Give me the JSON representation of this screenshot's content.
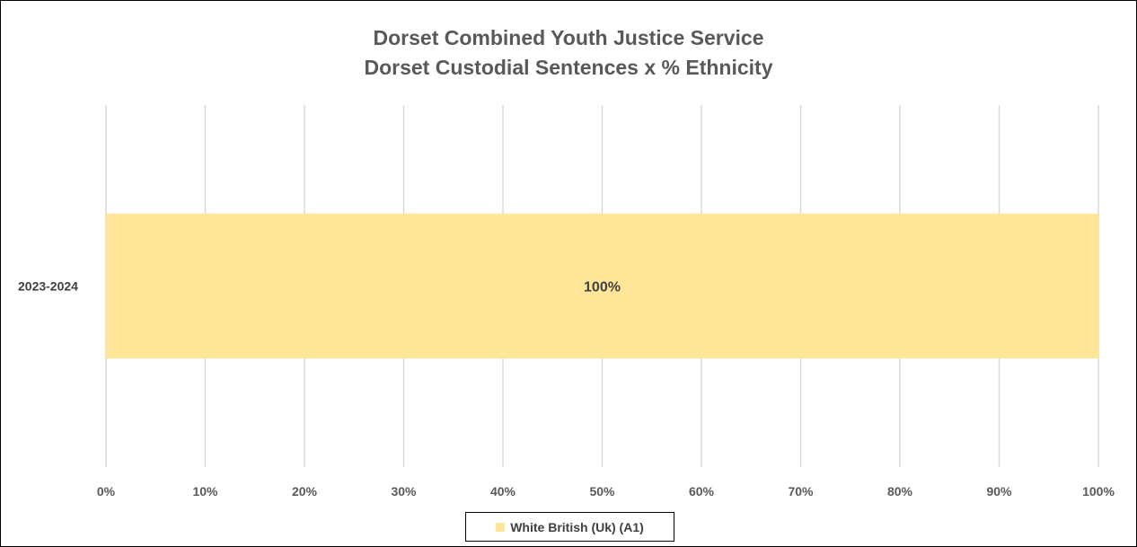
{
  "chart_data": {
    "type": "bar",
    "orientation": "horizontal",
    "stacked": true,
    "title": "Dorset Combined Youth Justice Service",
    "subtitle": "Dorset Custodial Sentences x % Ethnicity",
    "categories": [
      "2023-2024"
    ],
    "series": [
      {
        "name": "White British (Uk) (A1)",
        "values": [
          100
        ],
        "color": "#FFE699",
        "data_labels": [
          "100%"
        ]
      }
    ],
    "xlim": [
      0,
      100
    ],
    "x_ticks": [
      "0%",
      "10%",
      "20%",
      "30%",
      "40%",
      "50%",
      "60%",
      "70%",
      "80%",
      "90%",
      "100%"
    ],
    "grid": "vertical",
    "legend_position": "bottom"
  }
}
